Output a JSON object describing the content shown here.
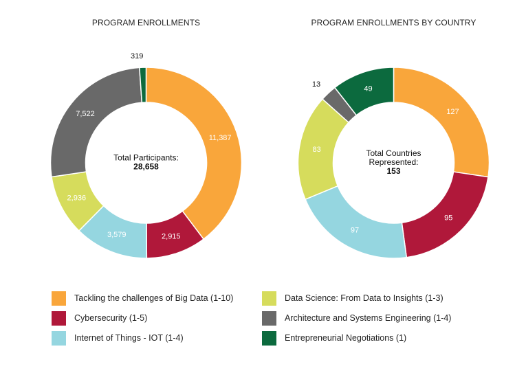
{
  "colors": {
    "big_data": "#f9a63b",
    "cybersecurity": "#b0183a",
    "iot": "#95d6e0",
    "data_science": "#d6dc5c",
    "architecture": "#696969",
    "negotiations": "#0c6a3e"
  },
  "chart_data": [
    {
      "type": "pie",
      "title": "PROGRAM ENROLLMENTS",
      "center_label": [
        "Total Participants:",
        "28,658"
      ],
      "slices": [
        {
          "key": "big_data",
          "value": 11387,
          "label": "11,387"
        },
        {
          "key": "cybersecurity",
          "value": 2915,
          "label": "2,915"
        },
        {
          "key": "iot",
          "value": 3579,
          "label": "3,579"
        },
        {
          "key": "data_science",
          "value": 2936,
          "label": "2,936"
        },
        {
          "key": "architecture",
          "value": 7522,
          "label": "7,522"
        },
        {
          "key": "negotiations",
          "value": 319,
          "label": "319"
        }
      ]
    },
    {
      "type": "pie",
      "title": "PROGRAM ENROLLMENTS BY COUNTRY",
      "center_label": [
        "Total Countries",
        "Represented:",
        "153"
      ],
      "slices": [
        {
          "key": "big_data",
          "value": 127,
          "label": "127"
        },
        {
          "key": "cybersecurity",
          "value": 95,
          "label": "95"
        },
        {
          "key": "iot",
          "value": 97,
          "label": "97"
        },
        {
          "key": "data_science",
          "value": 83,
          "label": "83"
        },
        {
          "key": "architecture",
          "value": 13,
          "label": "13"
        },
        {
          "key": "negotiations",
          "value": 49,
          "label": "49"
        }
      ]
    }
  ],
  "legend": [
    {
      "key": "big_data",
      "label": "Tackling the challenges of Big Data (1-10)"
    },
    {
      "key": "cybersecurity",
      "label": "Cybersecurity (1-5)"
    },
    {
      "key": "iot",
      "label": "Internet of Things - IOT (1-4)"
    },
    {
      "key": "data_science",
      "label": "Data Science: From Data to Insights (1-3)"
    },
    {
      "key": "architecture",
      "label": "Architecture and Systems Engineering (1-4)"
    },
    {
      "key": "negotiations",
      "label": "Entrepreneurial Negotiations (1)"
    }
  ]
}
